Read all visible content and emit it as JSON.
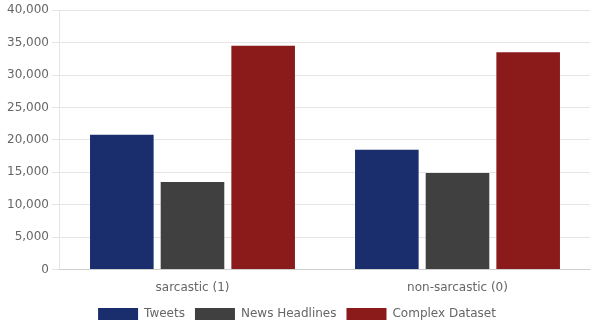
{
  "chart_data": {
    "type": "bar",
    "categories": [
      "sarcastic (1)",
      "non-sarcastic (0)"
    ],
    "series": [
      {
        "name": "Tweets",
        "color": "#1a2e6e",
        "values": [
          20800,
          18500
        ]
      },
      {
        "name": "News Headlines",
        "color": "#404040",
        "values": [
          13500,
          14900
        ]
      },
      {
        "name": "Complex Dataset",
        "color": "#8b1a1a",
        "values": [
          34500,
          33500
        ]
      }
    ],
    "ylim": [
      0,
      40000
    ],
    "yticks": [
      0,
      {
        "value": 5000,
        "label": "5,000"
      },
      {
        "value": 10000,
        "label": "10,000"
      },
      {
        "value": 15000,
        "label": "15,000"
      },
      {
        "value": 20000,
        "label": "20,000"
      },
      {
        "value": 25000,
        "label": "25,000"
      },
      {
        "value": 30000,
        "label": "30,000"
      },
      {
        "value": 35000,
        "label": "35,000"
      },
      {
        "value": 40000,
        "label": "40,000"
      }
    ],
    "grid": true,
    "legend": "bottom"
  }
}
